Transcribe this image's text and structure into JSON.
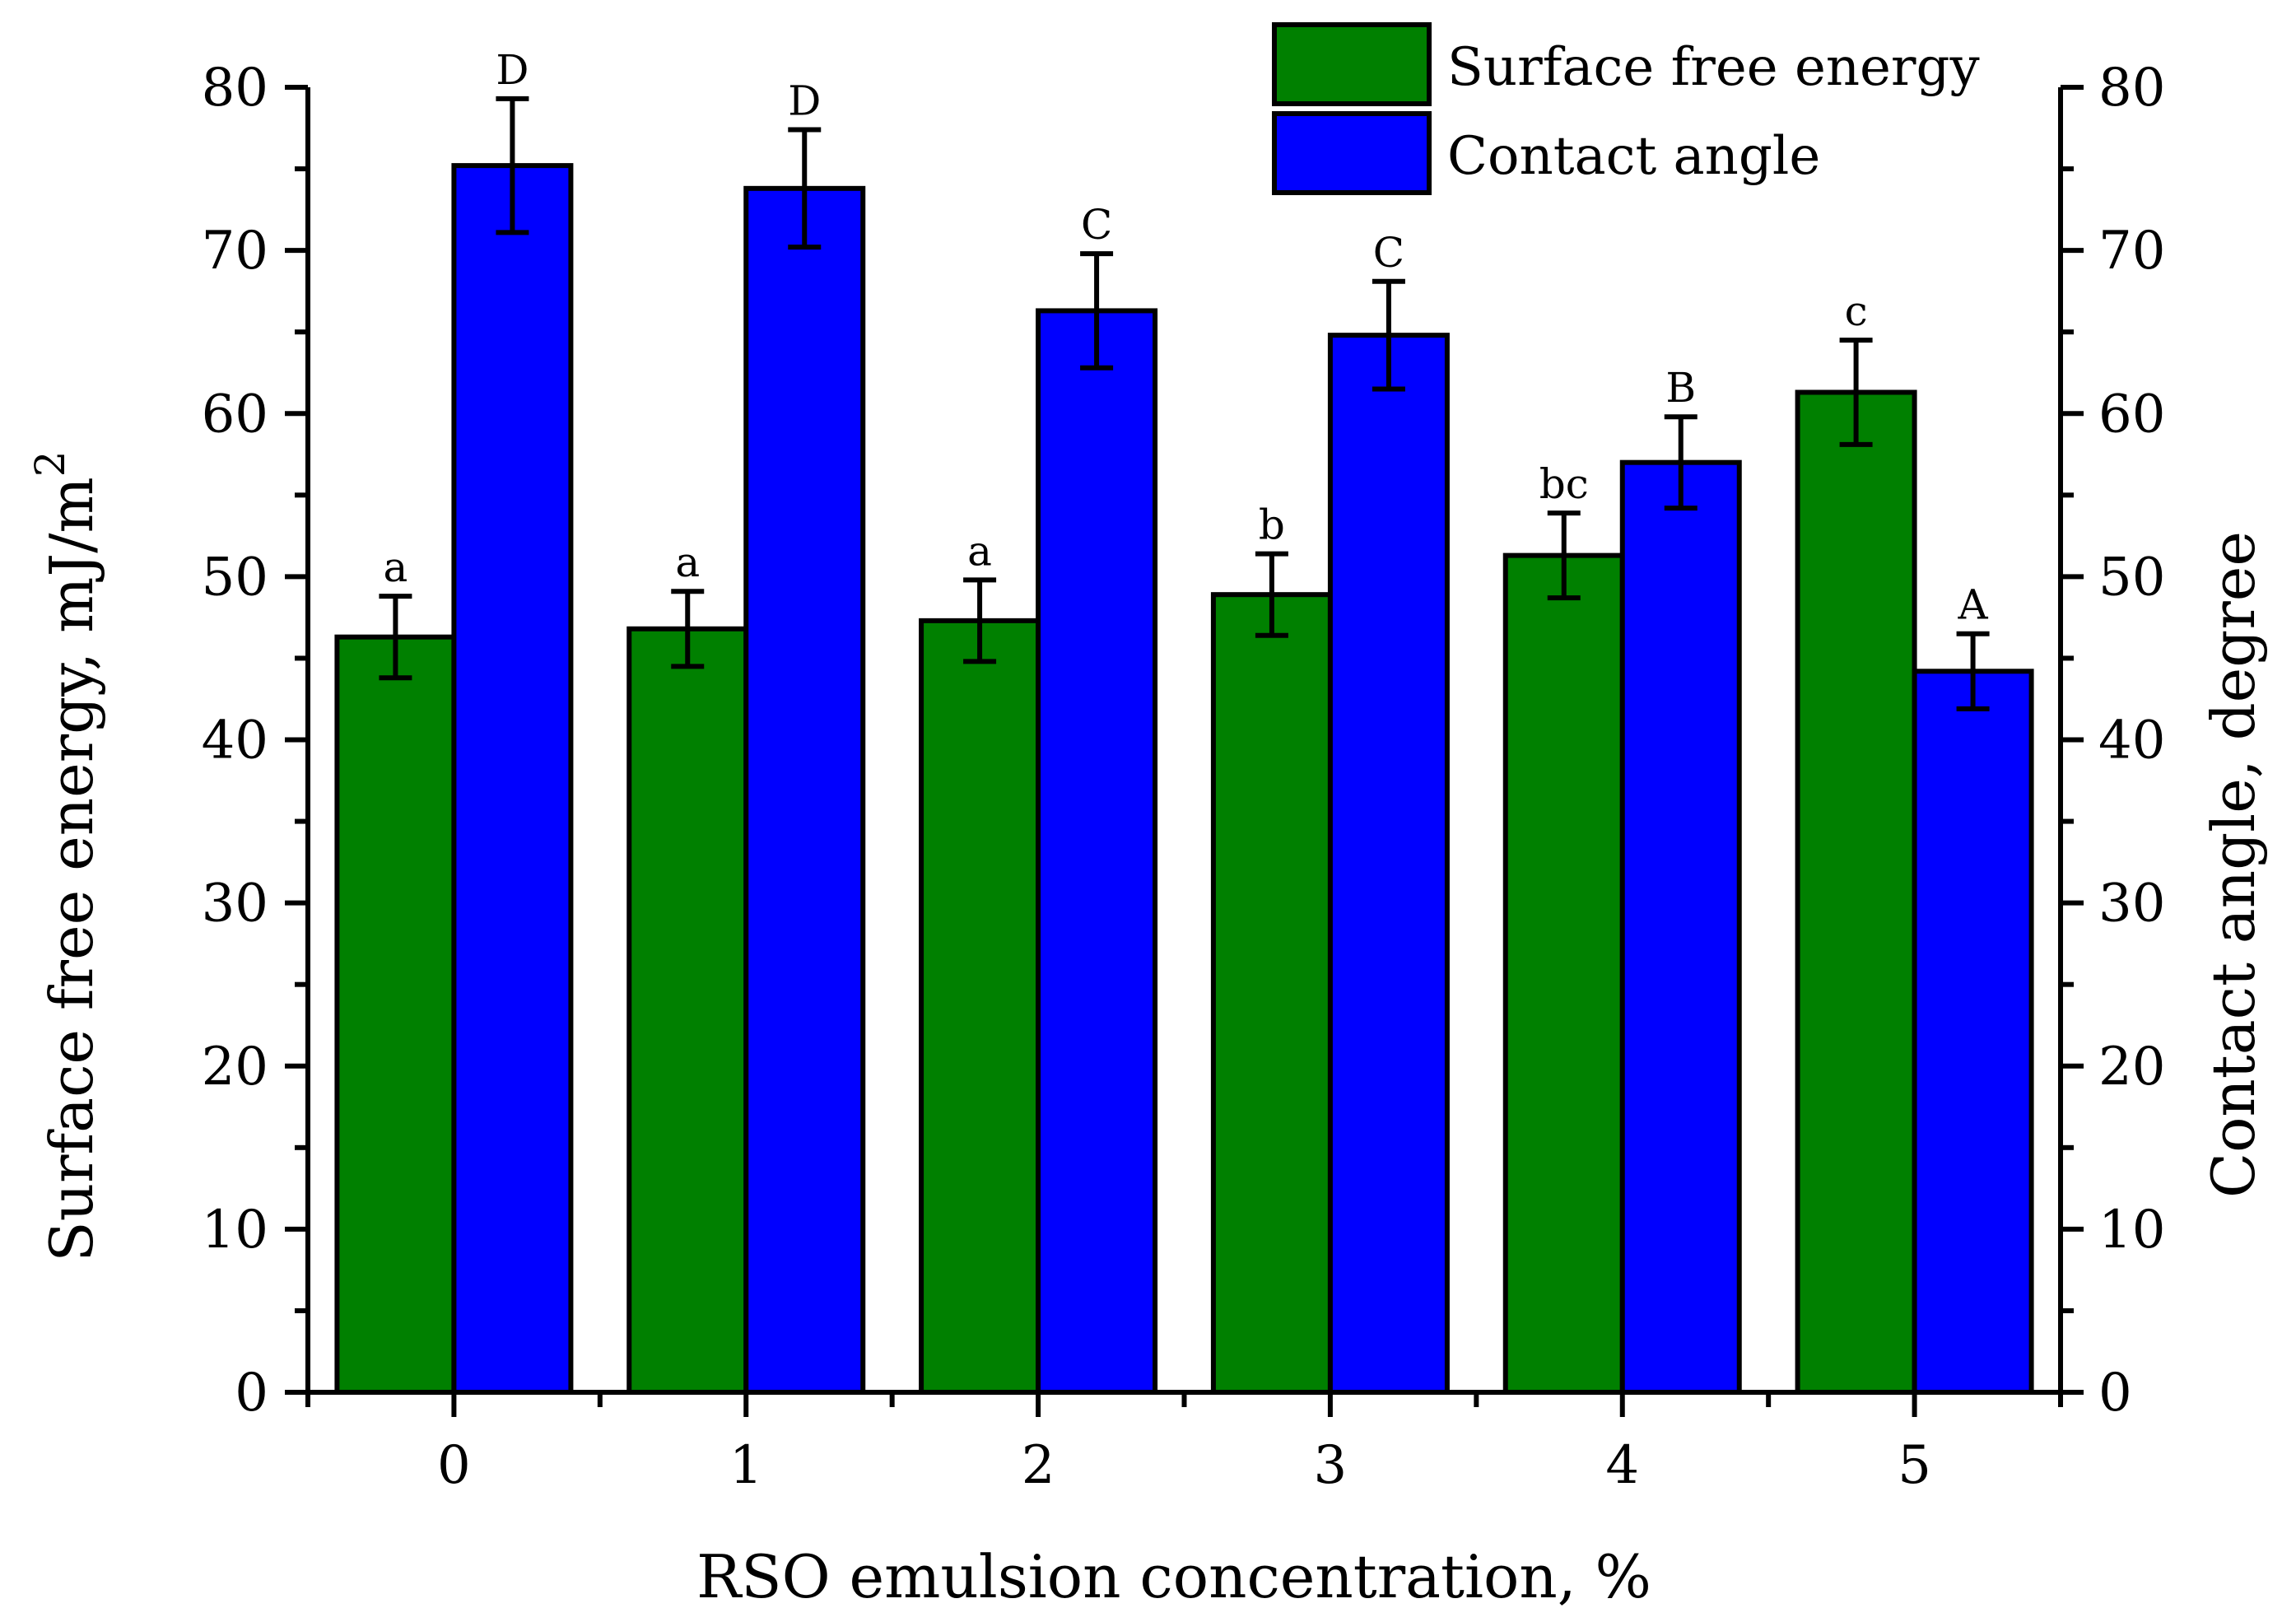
{
  "chart_data": {
    "type": "bar",
    "categories": [
      "0",
      "1",
      "2",
      "3",
      "4",
      "5"
    ],
    "xlabel": "RSO emulsion concentration, %",
    "ylabel": "Surface free energy, mJ/m",
    "ylabel_superscript": "2",
    "y2label": "Contact angle, degree",
    "ylim": [
      0,
      80
    ],
    "y2lim": [
      0,
      80
    ],
    "yticks": [
      "0",
      "10",
      "20",
      "30",
      "40",
      "50",
      "60",
      "70",
      "80"
    ],
    "y2ticks": [
      "0",
      "10",
      "20",
      "30",
      "40",
      "50",
      "60",
      "70",
      "80"
    ],
    "legend_position": "top-right",
    "series": [
      {
        "name": "Surface free energy",
        "axis": "left",
        "color": "#008000",
        "values": [
          46.3,
          46.8,
          47.3,
          48.9,
          51.3,
          61.3
        ],
        "errors": [
          2.5,
          2.3,
          2.5,
          2.5,
          2.6,
          3.2
        ],
        "labels": [
          "a",
          "a",
          "a",
          "b",
          "bc",
          "c"
        ]
      },
      {
        "name": "Contact angle",
        "axis": "right",
        "color": "#0000ff",
        "values": [
          75.2,
          73.8,
          66.3,
          64.8,
          57.0,
          44.2
        ],
        "errors": [
          4.1,
          3.6,
          3.5,
          3.3,
          2.8,
          2.3
        ],
        "labels": [
          "D",
          "D",
          "C",
          "C",
          "B",
          "A"
        ]
      }
    ]
  }
}
